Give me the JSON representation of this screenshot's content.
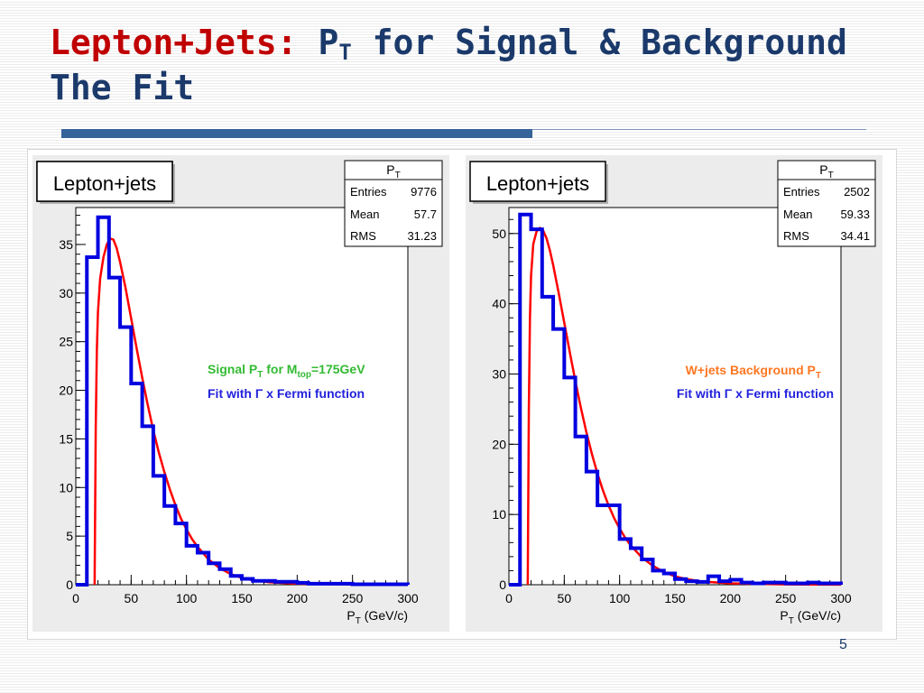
{
  "slide": {
    "title_red": "Lepton+Jets:",
    "title_rest_pre": "P",
    "title_rest_sub": "T",
    "title_rest_post": " for Signal & Background",
    "title_line2": "The Fit",
    "page_number": "5"
  },
  "colors": {
    "histogram": "#0000e0",
    "fit": "#ff0000",
    "title_red": "#c00000",
    "title_blue": "#1b3a6b",
    "label_green": "#33bb33",
    "label_orange": "#ff7722",
    "label_blue": "#2222dd"
  },
  "chart_data": [
    {
      "type": "histogram",
      "title": "Lepton+jets",
      "xlabel": "P_T (GeV/c)",
      "xlim": [
        0,
        300
      ],
      "ylim": [
        0,
        38.8
      ],
      "x_ticks": [
        0,
        50,
        100,
        150,
        200,
        250,
        300
      ],
      "y_ticks": [
        0,
        5,
        10,
        15,
        20,
        25,
        30,
        35
      ],
      "bin_width": 10,
      "bin_edges_start": 0,
      "values": [
        0,
        33.7,
        37.8,
        31.6,
        26.5,
        20.7,
        16.3,
        11.2,
        8.1,
        6.3,
        4,
        3.3,
        2.2,
        1.6,
        0.9,
        0.6,
        0.4,
        0.4,
        0.3,
        0.3,
        0.2,
        0.1,
        0.1,
        0.1,
        0.1,
        0.05,
        0.05,
        0.05,
        0.05,
        0.05
      ],
      "fit_curve": {
        "x": [
          17,
          18,
          19,
          20,
          22,
          25,
          28,
          31,
          34,
          37,
          40,
          45,
          50,
          55,
          60,
          65,
          70,
          75,
          80,
          85,
          90,
          95,
          100,
          105,
          110,
          120,
          130,
          140,
          150,
          160,
          175,
          200,
          250,
          300
        ],
        "y": [
          0,
          16,
          24,
          28,
          31.5,
          33.7,
          35,
          35.6,
          35.5,
          34.6,
          33.2,
          30.5,
          27.4,
          24.3,
          21.3,
          18.5,
          15.9,
          13.6,
          11.6,
          9.8,
          8.2,
          6.8,
          5.7,
          4.7,
          3.9,
          2.6,
          1.7,
          1.1,
          0.7,
          0.45,
          0.25,
          0.1,
          0.02,
          0
        ]
      },
      "stats": {
        "name": "P",
        "name_sub": "T",
        "entries_label": "Entries",
        "entries": "9776",
        "mean_label": "Mean",
        "mean": "57.7",
        "rms_label": "RMS",
        "rms": "31.23"
      },
      "annotation": {
        "line1_pre": "Signal P",
        "line1_sub": "T",
        "line1_mid": " for M",
        "line1_sub2": "top",
        "line1_post": "=175GeV",
        "line2": "Fit with Γ x Fermi function"
      }
    },
    {
      "type": "histogram",
      "title": "Lepton+jets",
      "xlabel": "P_T (GeV/c)",
      "xlim": [
        0,
        300
      ],
      "ylim": [
        0,
        53.7
      ],
      "x_ticks": [
        0,
        50,
        100,
        150,
        200,
        250,
        300
      ],
      "y_ticks": [
        0,
        10,
        20,
        30,
        40,
        50
      ],
      "bin_width": 10,
      "bin_edges_start": 0,
      "values": [
        0,
        52.7,
        50.6,
        41,
        36.4,
        29.5,
        21.1,
        16.1,
        11.3,
        11.3,
        6.5,
        5.2,
        3.6,
        2,
        1.6,
        0.8,
        0.5,
        0.4,
        1.2,
        0.5,
        0.7,
        0.3,
        0.2,
        0.3,
        0.3,
        0.2,
        0.2,
        0.3,
        0.2,
        0.2
      ],
      "fit_curve": {
        "x": [
          17,
          18,
          19,
          20,
          22,
          25,
          28,
          31,
          34,
          37,
          40,
          45,
          50,
          55,
          60,
          65,
          70,
          75,
          80,
          85,
          90,
          95,
          100,
          105,
          110,
          120,
          130,
          140,
          150,
          160,
          175,
          200,
          250,
          300
        ],
        "y": [
          0,
          25,
          38,
          44,
          48.5,
          50.3,
          50.8,
          50.4,
          49.3,
          47.6,
          45.5,
          41.5,
          37.3,
          33.1,
          29,
          25.2,
          21.7,
          18.6,
          15.8,
          13.4,
          11.3,
          9.5,
          8,
          6.7,
          5.6,
          3.9,
          2.7,
          1.8,
          1.2,
          0.8,
          0.45,
          0.2,
          0.05,
          0.01
        ]
      },
      "stats": {
        "name": "P",
        "name_sub": "T",
        "entries_label": "Entries",
        "entries": "2502",
        "mean_label": "Mean",
        "mean": "59.33",
        "rms_label": "RMS",
        "rms": "34.41"
      },
      "annotation": {
        "line1_pre": "W+jets Background P",
        "line1_sub": "T",
        "line2": "Fit with Γ x Fermi function"
      }
    }
  ]
}
